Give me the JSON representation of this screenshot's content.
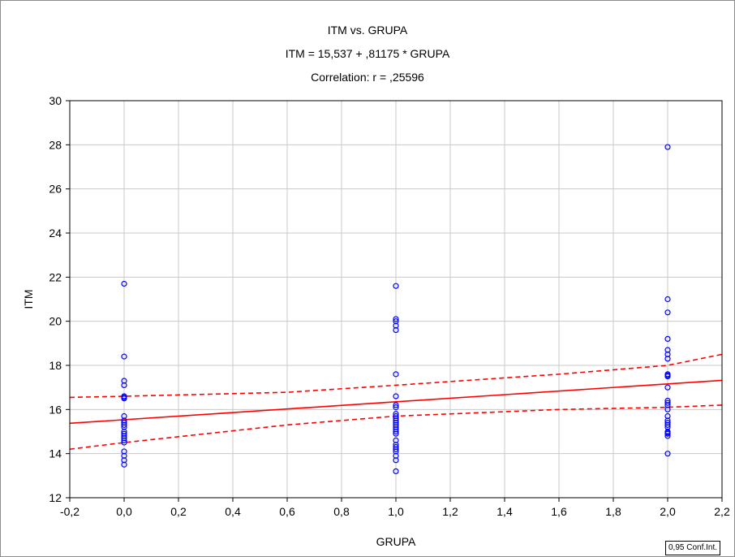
{
  "chart_data": {
    "type": "scatter",
    "title": "ITM vs. GRUPA",
    "subtitle": "ITM = 15,537 + ,81175 * GRUPA",
    "correlation": "Correlation: r = ,25596",
    "xlabel": "GRUPA",
    "ylabel": "ITM",
    "xlim": [
      -0.2,
      2.2
    ],
    "ylim": [
      12,
      30
    ],
    "x_ticks": [
      -0.2,
      0.0,
      0.2,
      0.4,
      0.6,
      0.8,
      1.0,
      1.2,
      1.4,
      1.6,
      1.8,
      2.0,
      2.2
    ],
    "x_tick_labels": [
      "-0,2",
      "0,0",
      "0,2",
      "0,4",
      "0,6",
      "0,8",
      "1,0",
      "1,2",
      "1,4",
      "1,6",
      "1,8",
      "2,0",
      "2,2"
    ],
    "y_ticks": [
      12,
      14,
      16,
      18,
      20,
      22,
      24,
      26,
      28,
      30
    ],
    "y_tick_labels": [
      "12",
      "14",
      "16",
      "18",
      "20",
      "22",
      "24",
      "26",
      "28",
      "30"
    ],
    "grid": true,
    "legend": "0,95 Conf.Int.",
    "legend_position": "bottom-right",
    "colors": {
      "points": "#0000ff",
      "fit": "#ff0000",
      "grid": "#c8c8c8"
    },
    "regression": {
      "intercept": 15.537,
      "slope": 0.81175
    },
    "confidence_band": {
      "upper": [
        [
          -0.2,
          16.55
        ],
        [
          0.0,
          16.6
        ],
        [
          0.6,
          16.78
        ],
        [
          1.0,
          17.1
        ],
        [
          1.6,
          17.6
        ],
        [
          2.0,
          18.0
        ],
        [
          2.2,
          18.5
        ]
      ],
      "lower": [
        [
          -0.2,
          14.2
        ],
        [
          0.0,
          14.5
        ],
        [
          0.6,
          15.3
        ],
        [
          1.0,
          15.7
        ],
        [
          1.6,
          16.0
        ],
        [
          2.0,
          16.1
        ],
        [
          2.2,
          16.2
        ]
      ]
    },
    "series": [
      {
        "x": [
          0,
          0,
          0,
          0,
          0,
          0,
          0,
          0,
          0,
          0,
          0,
          0,
          0,
          0,
          0,
          0,
          0,
          0,
          0,
          0,
          0,
          0,
          1,
          1,
          1,
          1,
          1,
          1,
          1,
          1,
          1,
          1,
          1,
          1,
          1,
          1,
          1,
          1,
          1,
          1,
          1,
          1,
          1,
          1,
          1,
          1,
          1,
          1,
          1,
          2,
          2,
          2,
          2,
          2,
          2,
          2,
          2,
          2,
          2,
          2,
          2,
          2,
          2,
          2,
          2,
          2,
          2,
          2,
          2,
          2,
          2,
          2,
          2,
          2
        ],
        "y": [
          21.7,
          18.4,
          17.3,
          17.1,
          16.6,
          16.5,
          15.7,
          15.5,
          15.4,
          15.2,
          15.0,
          14.8,
          14.7,
          14.6,
          14.5,
          14.1,
          13.9,
          13.7,
          13.5,
          16.55,
          15.3,
          14.9,
          21.6,
          20.1,
          20.0,
          19.8,
          19.6,
          17.6,
          16.6,
          16.1,
          15.7,
          15.5,
          15.3,
          15.2,
          15.1,
          14.9,
          14.6,
          14.4,
          14.3,
          14.1,
          13.9,
          13.7,
          13.2,
          15.8,
          15.4,
          15.0,
          14.2,
          16.2,
          15.6,
          27.9,
          21.0,
          20.4,
          19.2,
          18.7,
          18.3,
          17.6,
          17.5,
          16.4,
          16.2,
          15.7,
          15.4,
          15.2,
          15.0,
          14.9,
          14.8,
          14.0,
          17.0,
          15.5,
          15.3,
          16.0,
          14.95,
          18.5,
          17.55,
          16.3
        ]
      }
    ]
  }
}
